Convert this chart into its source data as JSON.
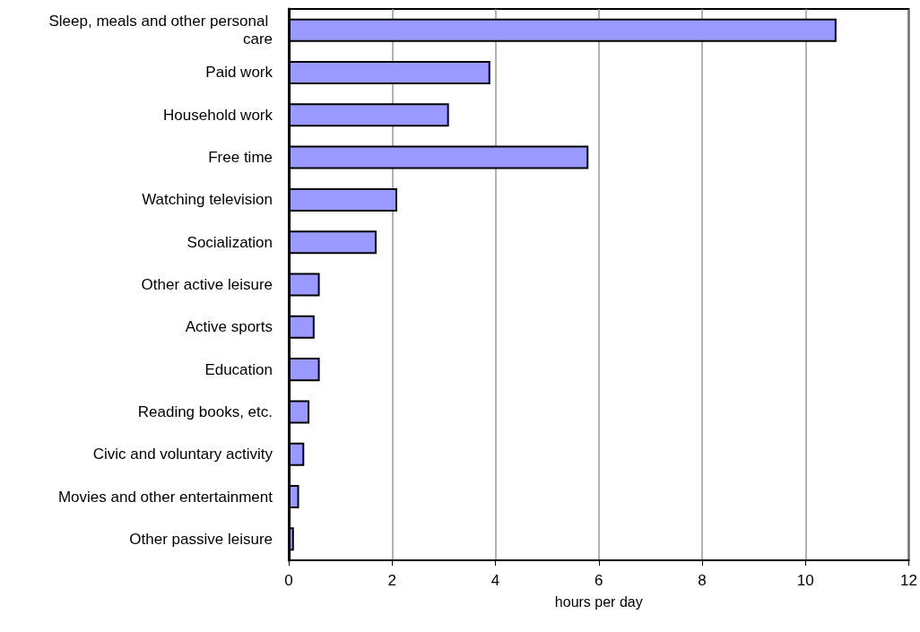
{
  "chart_data": {
    "type": "bar",
    "orientation": "horizontal",
    "xlabel": "hours per day",
    "categories": [
      "Sleep, meals and other personal care",
      "Paid work",
      "Household work",
      "Free time",
      "Watching television",
      "Socialization",
      "Other active leisure",
      "Active sports",
      "Education",
      "Reading books, etc.",
      "Civic and voluntary activity",
      "Movies and other entertainment",
      "Other passive leisure"
    ],
    "values": [
      10.6,
      3.9,
      3.1,
      5.8,
      2.1,
      1.7,
      0.6,
      0.5,
      0.6,
      0.4,
      0.3,
      0.2,
      0.1
    ],
    "color": "#9999ff",
    "xlim": [
      0,
      12
    ],
    "xticks": [
      0,
      2,
      4,
      6,
      8,
      10,
      12
    ],
    "grid": "x"
  }
}
